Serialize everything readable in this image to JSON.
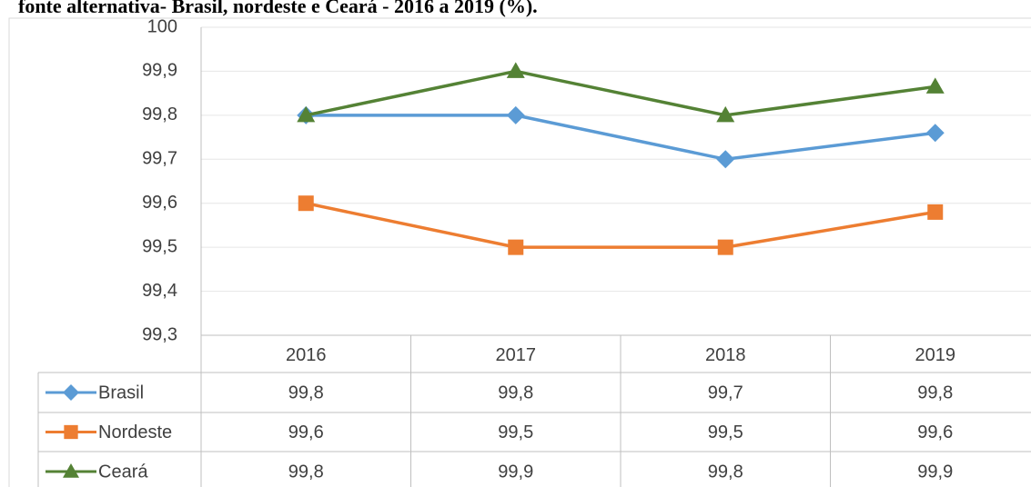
{
  "chart_data": {
    "type": "line",
    "title": "fonte alternativa- Brasil, nordeste e Ceará - 2016 a 2019 (%).",
    "categories": [
      "2016",
      "2017",
      "2018",
      "2019"
    ],
    "series": [
      {
        "name": "Brasil",
        "color": "#5b9bd5",
        "marker": "diamond",
        "values": [
          99.8,
          99.8,
          99.7,
          99.76
        ],
        "value_labels": [
          "99,8",
          "99,8",
          "99,7",
          "99,8"
        ]
      },
      {
        "name": "Nordeste",
        "color": "#ed7d31",
        "marker": "square",
        "values": [
          99.6,
          99.5,
          99.5,
          99.58
        ],
        "value_labels": [
          "99,6",
          "99,5",
          "99,5",
          "99,6"
        ]
      },
      {
        "name": "Ceará",
        "color": "#548235",
        "marker": "triangle",
        "values": [
          99.8,
          99.9,
          99.8,
          99.865
        ],
        "value_labels": [
          "99,8",
          "99,9",
          "99,8",
          "99,9"
        ]
      }
    ],
    "ylim": [
      99.3,
      100
    ],
    "yticks": [
      {
        "value": 99.3,
        "label": "99,3"
      },
      {
        "value": 99.4,
        "label": "99,4"
      },
      {
        "value": 99.5,
        "label": "99,5"
      },
      {
        "value": 99.6,
        "label": "99,6"
      },
      {
        "value": 99.7,
        "label": "99,7"
      },
      {
        "value": 99.8,
        "label": "99,8"
      },
      {
        "value": 99.9,
        "label": "99,9"
      },
      100
    ],
    "grid": true
  }
}
